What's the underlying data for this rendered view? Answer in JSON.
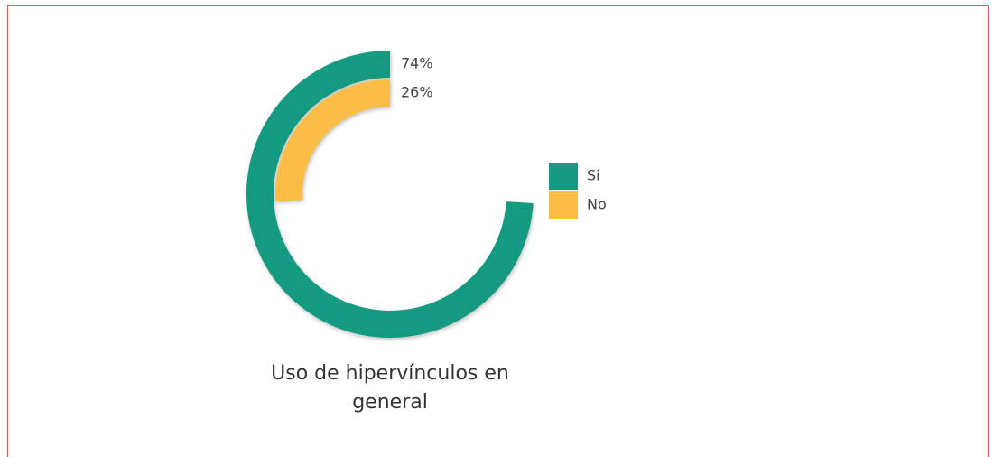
{
  "chart_data": {
    "type": "radial_bar",
    "title": "Uso de hipervínculos en general",
    "categories": [
      "Si",
      "No"
    ],
    "values": [
      74,
      26
    ],
    "value_labels": [
      "74%",
      "26%"
    ],
    "colors": [
      "#139a80",
      "#fbbd45"
    ],
    "ylim": [
      0,
      100
    ],
    "legend": "right"
  }
}
